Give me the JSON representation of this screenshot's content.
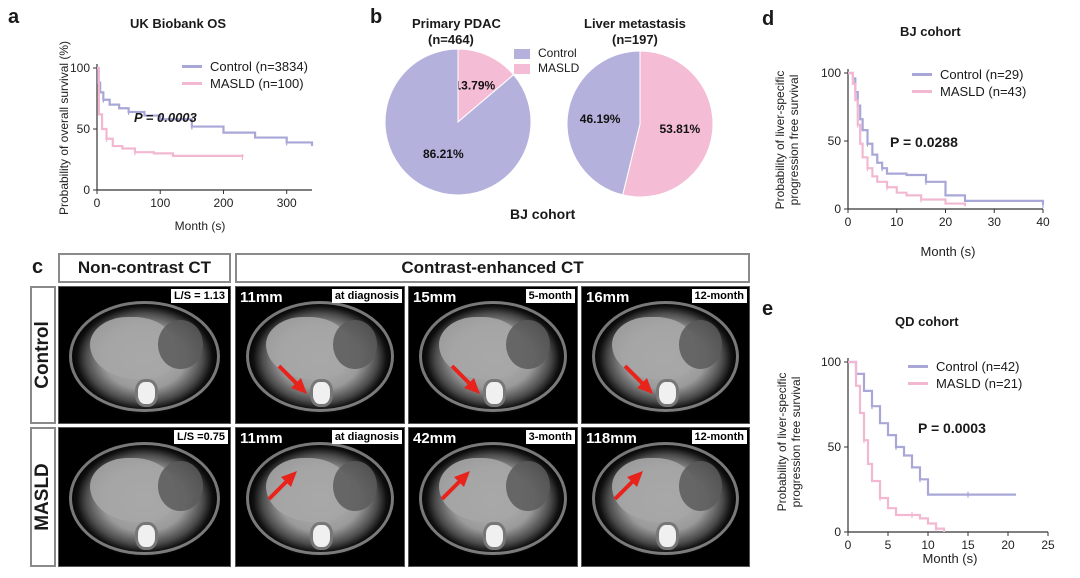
{
  "panels": {
    "a": {
      "letter": "a",
      "title": "UK Biobank OS",
      "ylabel": "Probability of overall survival (%)",
      "xlabel": "Month (s)",
      "p_value": "P = 0.0003",
      "legend": [
        {
          "label": "Control (n=3834)",
          "color": "#a9a7d8"
        },
        {
          "label": "MASLD (n=100)",
          "color": "#f2b8d2"
        }
      ]
    },
    "b": {
      "letter": "b",
      "pie1_title_1": "Primary PDAC",
      "pie1_title_2": "(n=464)",
      "pie2_title_1": "Liver metastasis",
      "pie2_title_2": "(n=197)",
      "cohort": "BJ cohort",
      "legend": [
        {
          "label": "Control",
          "color": "#b4b2dd"
        },
        {
          "label": "MASLD",
          "color": "#f5bcd6"
        }
      ]
    },
    "d": {
      "letter": "d",
      "title": "BJ cohort",
      "ylabel_1": "Probability of liver-specific",
      "ylabel_2": "progression free survival",
      "xlabel": "Month (s)",
      "p_value": "P = 0.0288",
      "legend": [
        {
          "label": "Control (n=29)",
          "color": "#a9a7d8"
        },
        {
          "label": "MASLD (n=43)",
          "color": "#f2b8d2"
        }
      ]
    },
    "e": {
      "letter": "e",
      "title": "QD cohort",
      "ylabel_1": "Probability of liver-specific",
      "ylabel_2": "progression free survival",
      "xlabel": "Month (s)",
      "p_value": "P = 0.0003",
      "legend": [
        {
          "label": "Control (n=42)",
          "color": "#a9a7d8"
        },
        {
          "label": "MASLD (n=21)",
          "color": "#f2b8d2"
        }
      ]
    },
    "c": {
      "letter": "c",
      "header_noncontrast": "Non-contrast CT",
      "header_contrast": "Contrast-enhanced CT",
      "row_control": "Control",
      "row_masld": "MASLD",
      "control_cells": [
        {
          "tag": "L/S = 1.13",
          "size": ""
        },
        {
          "tag": "at diagnosis",
          "size": "11mm"
        },
        {
          "tag": "5-month",
          "size": "15mm"
        },
        {
          "tag": "12-month",
          "size": "16mm"
        }
      ],
      "masld_cells": [
        {
          "tag": "L/S =0.75",
          "size": ""
        },
        {
          "tag": "at diagnosis",
          "size": "11mm"
        },
        {
          "tag": "3-month",
          "size": "42mm"
        },
        {
          "tag": "12-month",
          "size": "118mm"
        }
      ]
    }
  },
  "chart_data": [
    {
      "id": "a",
      "type": "line",
      "title": "UK Biobank OS",
      "xlabel": "Month (s)",
      "ylabel": "Probability of overall survival (%)",
      "xlim": [
        0,
        340
      ],
      "ylim": [
        0,
        100
      ],
      "xticks": [
        0,
        100,
        200,
        300
      ],
      "yticks": [
        0,
        50,
        100
      ],
      "series": [
        {
          "name": "Control (n=3834)",
          "color": "#a9a7d8",
          "x": [
            0,
            2,
            5,
            10,
            20,
            35,
            50,
            75,
            100,
            150,
            200,
            250,
            300,
            340
          ],
          "y": [
            100,
            88,
            80,
            74,
            70,
            67,
            64,
            61,
            58,
            52,
            47,
            43,
            39,
            36
          ]
        },
        {
          "name": "MASLD (n=100)",
          "color": "#f2b8d2",
          "x": [
            0,
            3,
            8,
            15,
            25,
            40,
            60,
            90,
            120,
            230
          ],
          "y": [
            100,
            62,
            50,
            42,
            36,
            34,
            31,
            30,
            28,
            27
          ]
        }
      ]
    },
    {
      "id": "b1",
      "type": "pie",
      "title": "Primary PDAC (n=464)",
      "labels": [
        "MASLD",
        "Control"
      ],
      "values": [
        13.79,
        86.21
      ],
      "value_labels": [
        "13.79%",
        "86.21%"
      ],
      "colors": [
        "#f5bcd6",
        "#b4b2dd"
      ]
    },
    {
      "id": "b2",
      "type": "pie",
      "title": "Liver metastasis (n=197)",
      "labels": [
        "MASLD",
        "Control"
      ],
      "values": [
        53.81,
        46.19
      ],
      "value_labels": [
        "53.81%",
        "46.19%"
      ],
      "colors": [
        "#f5bcd6",
        "#b4b2dd"
      ]
    },
    {
      "id": "d",
      "type": "line",
      "title": "BJ cohort",
      "xlabel": "Month (s)",
      "ylim": [
        0,
        100
      ],
      "xlim": [
        0,
        40
      ],
      "xticks": [
        0,
        10,
        20,
        30,
        40
      ],
      "yticks": [
        0,
        50,
        100
      ],
      "series": [
        {
          "name": "Control (n=29)",
          "color": "#a9a7d8",
          "x": [
            0,
            1,
            1.5,
            2,
            2.5,
            3,
            4,
            5,
            6,
            7,
            8,
            12,
            16,
            20,
            24,
            40
          ],
          "y": [
            100,
            96,
            86,
            76,
            66,
            58,
            48,
            40,
            34,
            30,
            26,
            25,
            20,
            10,
            6,
            3
          ]
        },
        {
          "name": "MASLD (n=43)",
          "color": "#f2b8d2",
          "x": [
            0,
            1,
            1.5,
            2,
            2.5,
            3,
            4,
            5,
            6,
            8,
            10,
            12,
            15,
            20,
            24
          ],
          "y": [
            100,
            92,
            80,
            62,
            48,
            38,
            30,
            24,
            20,
            16,
            12,
            10,
            7,
            4,
            2
          ]
        }
      ]
    },
    {
      "id": "e",
      "type": "line",
      "title": "QD cohort",
      "xlabel": "Month (s)",
      "ylim": [
        0,
        100
      ],
      "xlim": [
        0,
        25
      ],
      "xticks": [
        0,
        5,
        10,
        15,
        20,
        25
      ],
      "yticks": [
        0,
        50,
        100
      ],
      "series": [
        {
          "name": "Control (n=42)",
          "color": "#a9a7d8",
          "x": [
            0,
            1,
            2,
            3,
            4,
            5,
            6,
            7,
            8,
            9,
            10,
            12,
            15,
            18,
            21
          ],
          "y": [
            100,
            93,
            83,
            74,
            64,
            57,
            50,
            45,
            38,
            31,
            22,
            22,
            22,
            22,
            22
          ]
        },
        {
          "name": "MASLD (n=21)",
          "color": "#f2b8d2",
          "x": [
            0,
            1,
            1.5,
            2,
            2.5,
            3,
            4,
            5,
            6,
            8,
            9,
            10,
            11,
            12
          ],
          "y": [
            100,
            86,
            70,
            54,
            40,
            30,
            20,
            14,
            10,
            10,
            8,
            5,
            2,
            0
          ]
        }
      ]
    }
  ]
}
